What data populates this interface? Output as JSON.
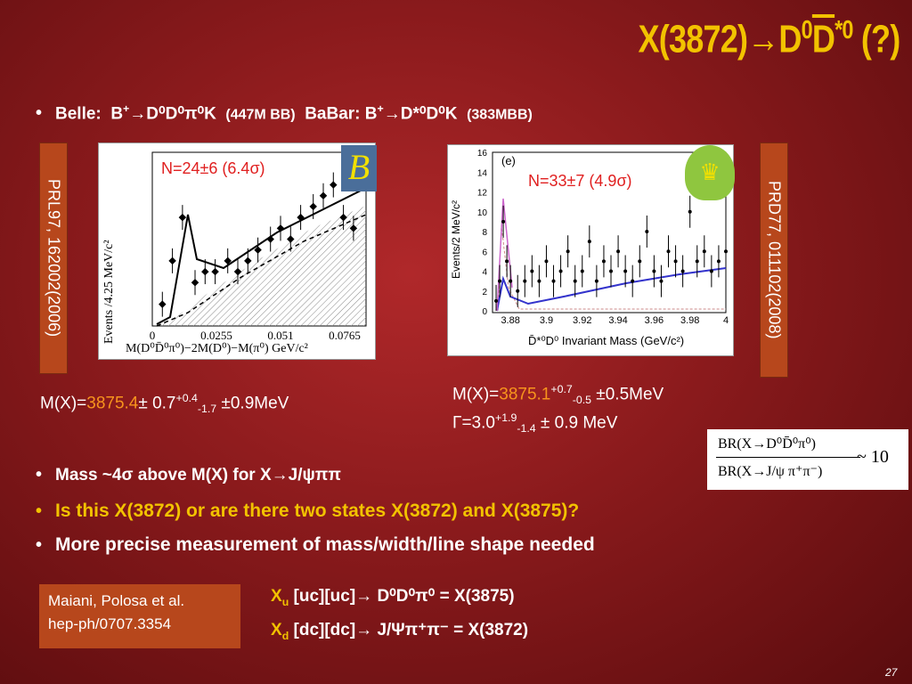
{
  "title": {
    "pre": "X(3872)→D",
    "sup1": "0",
    "d_bar": "D",
    "sup2": "*0",
    "post": " (?)"
  },
  "belle_line": {
    "label": "Belle:",
    "reaction_pre": "B",
    "reaction_post": "→",
    "products": "D⁰D⁰π⁰K",
    "stats": "(447M BB)",
    "babar_label": "BaBar:",
    "babar_products": "D*⁰D⁰K",
    "babar_stats": "(383MBB)"
  },
  "left_plot": {
    "signif": "N=24±6 (6.4σ)",
    "ylabel": "Events /4.25 MeV/c²",
    "xlabel": "M(D⁰D̄⁰π⁰)−2M(D⁰)−M(π⁰)  GeV/c²",
    "xticks": [
      "0",
      "0.0255",
      "0.051",
      "0.0765"
    ],
    "logo": "B"
  },
  "right_plot": {
    "signif": "N=33±7 (4.9σ)",
    "panel": "(e)",
    "ylabel": "Events/2 MeV/c²",
    "xlabel": "D̄*⁰D⁰ Invariant Mass (GeV/c²)",
    "xticks": [
      "3.88",
      "3.9",
      "3.92",
      "3.94",
      "3.96",
      "3.98",
      "4"
    ],
    "yticks": [
      "0",
      "2",
      "4",
      "6",
      "8",
      "10",
      "12",
      "14",
      "16"
    ]
  },
  "refs": {
    "left": "PRL97, 162002(2006)",
    "right": "PRD77, 011102(2008)"
  },
  "mass_left": {
    "pre": "M(X)=",
    "val": "3875.4",
    "pm": "± 0.7",
    "up": "+0.4",
    "down": "-1.7",
    "post": " ±0.9MeV"
  },
  "mass_right": {
    "pre": "M(X)=",
    "val": "3875.1",
    "up": "+0.7",
    "down": "-0.5",
    "post": " ±0.5MeV"
  },
  "width_right": {
    "pre": "Γ=3.0",
    "up": "+1.9",
    "down": "-1.4",
    "post": " ± 0.9 MeV"
  },
  "ratio": {
    "num": "BR(X→D⁰D̄⁰π⁰)",
    "den": "BR(X→J/ψ π⁺π⁻)",
    "val": "~ 10"
  },
  "bullets": [
    "Mass ~4σ above M(X) for X→J/ψππ",
    "Is this X(3872) or are there two states X(3872) and X(3875)?",
    "More precise measurement of mass/width/line shape needed"
  ],
  "ref_box": {
    "line1": "Maiani, Polosa et al.",
    "line2": "hep-ph/0707.3354"
  },
  "xu": {
    "label": "X",
    "sub": "u",
    "content": "[uc][uc]→ D⁰D⁰π⁰   = X(3875)"
  },
  "xd": {
    "label": "X",
    "sub": "d",
    "content": "[dc][dc]→ J/Ψπ⁺π⁻ = X(3872)"
  },
  "page_number": "27",
  "colors": {
    "title": "#f2c200",
    "highlight": "#f7941d",
    "ref_box": "#b7471c"
  },
  "chart_data": [
    {
      "type": "scatter",
      "title": "",
      "xlabel": "M(D⁰D̄⁰π⁰)−2M(D⁰)−M(π⁰)  GeV/c²",
      "ylabel": "Events /4.25 MeV/c²",
      "x": [
        0.004,
        0.008,
        0.012,
        0.017,
        0.021,
        0.025,
        0.03,
        0.034,
        0.038,
        0.042,
        0.047,
        0.051,
        0.055,
        0.059,
        0.064,
        0.068,
        0.072,
        0.076,
        0.08
      ],
      "y": [
        2,
        6,
        10,
        4,
        5,
        5,
        6,
        5,
        6,
        7,
        8,
        9,
        8,
        10,
        11,
        12,
        13,
        10,
        9
      ],
      "xlim": [
        0,
        0.085
      ]
    },
    {
      "type": "scatter",
      "title": "",
      "xlabel": "D̄*⁰D⁰ Invariant Mass (GeV/c²)",
      "ylabel": "Events/2 MeV/c²",
      "x": [
        3.872,
        3.874,
        3.876,
        3.878,
        3.88,
        3.884,
        3.888,
        3.892,
        3.896,
        3.9,
        3.904,
        3.908,
        3.912,
        3.916,
        3.92,
        3.924,
        3.928,
        3.932,
        3.936,
        3.94,
        3.944,
        3.948,
        3.952,
        3.956,
        3.96,
        3.964,
        3.968,
        3.972,
        3.976,
        3.98,
        3.984,
        3.988,
        3.992,
        3.996,
        4.0
      ],
      "y": [
        1,
        3,
        9,
        5,
        3,
        2,
        3,
        4,
        3,
        5,
        3,
        4,
        6,
        3,
        4,
        7,
        3,
        5,
        4,
        6,
        4,
        3,
        5,
        8,
        4,
        3,
        6,
        5,
        4,
        10,
        5,
        6,
        4,
        5,
        6
      ],
      "xlim": [
        3.87,
        4.0
      ],
      "ylim": [
        0,
        16
      ]
    }
  ]
}
